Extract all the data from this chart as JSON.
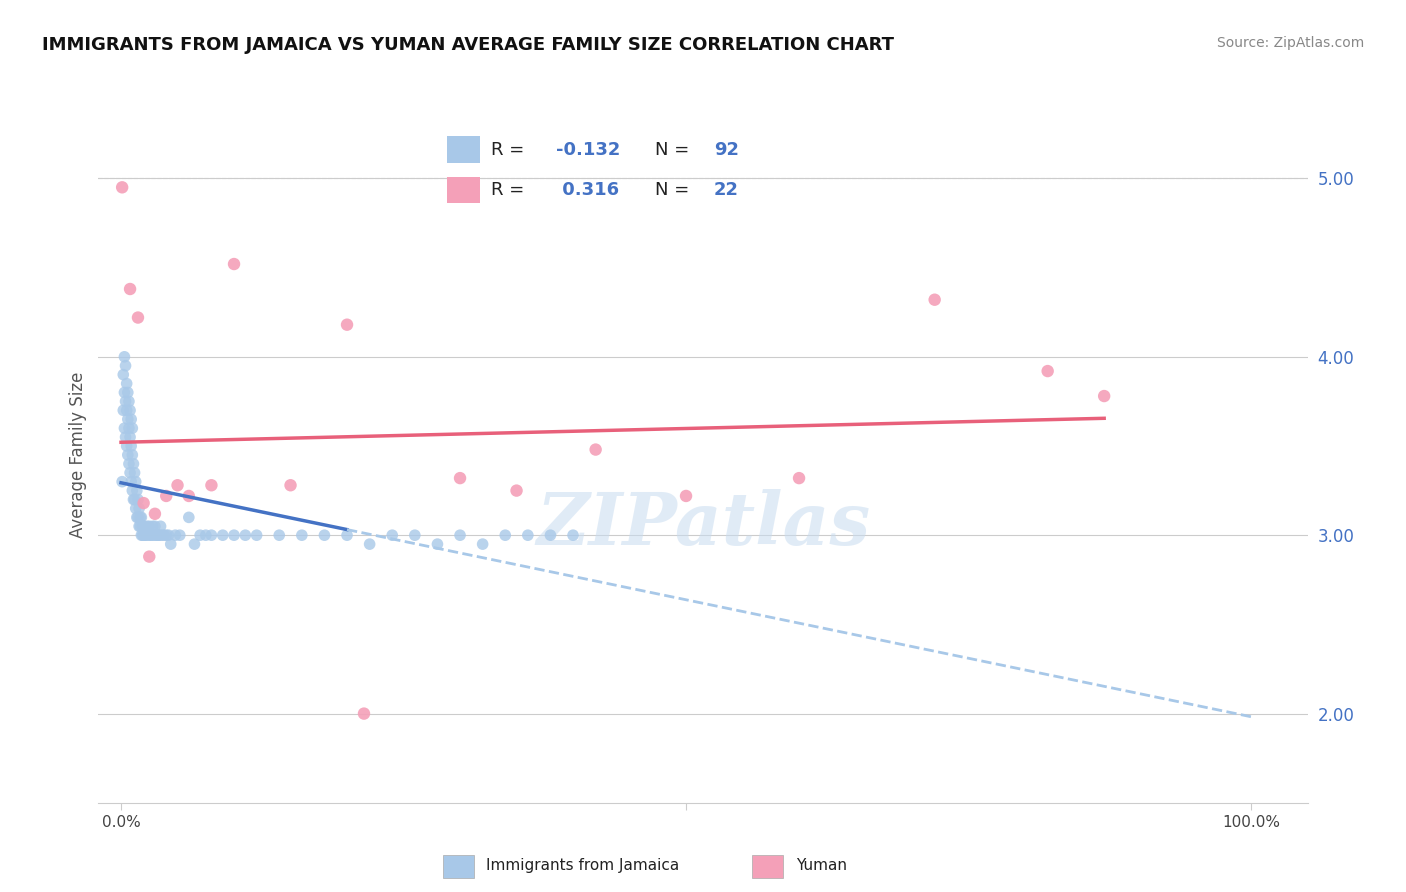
{
  "title": "IMMIGRANTS FROM JAMAICA VS YUMAN AVERAGE FAMILY SIZE CORRELATION CHART",
  "source": "Source: ZipAtlas.com",
  "ylabel": "Average Family Size",
  "r1": -0.132,
  "n1": 92,
  "r2": 0.316,
  "n2": 22,
  "ylim": [
    1.5,
    5.4
  ],
  "xlim": [
    -0.02,
    1.05
  ],
  "yticks": [
    2.0,
    3.0,
    4.0,
    5.0
  ],
  "color_blue": "#A8C8E8",
  "color_pink": "#F4A0B8",
  "line_blue_solid": "#4472C4",
  "line_blue_dash": "#A8C8E8",
  "line_pink": "#E8607A",
  "watermark": "ZIPatlas",
  "legend_label1": "Immigrants from Jamaica",
  "legend_label2": "Yuman",
  "blue_x": [
    0.001,
    0.002,
    0.002,
    0.003,
    0.003,
    0.003,
    0.004,
    0.004,
    0.004,
    0.005,
    0.005,
    0.005,
    0.006,
    0.006,
    0.006,
    0.007,
    0.007,
    0.007,
    0.008,
    0.008,
    0.008,
    0.009,
    0.009,
    0.009,
    0.01,
    0.01,
    0.01,
    0.011,
    0.011,
    0.012,
    0.012,
    0.013,
    0.013,
    0.014,
    0.014,
    0.015,
    0.015,
    0.016,
    0.016,
    0.017,
    0.017,
    0.018,
    0.018,
    0.019,
    0.019,
    0.02,
    0.02,
    0.021,
    0.022,
    0.023,
    0.024,
    0.025,
    0.026,
    0.027,
    0.028,
    0.029,
    0.03,
    0.031,
    0.032,
    0.033,
    0.034,
    0.035,
    0.036,
    0.038,
    0.04,
    0.042,
    0.044,
    0.048,
    0.052,
    0.06,
    0.065,
    0.07,
    0.075,
    0.08,
    0.09,
    0.1,
    0.11,
    0.12,
    0.14,
    0.16,
    0.18,
    0.2,
    0.22,
    0.24,
    0.26,
    0.28,
    0.3,
    0.32,
    0.34,
    0.36,
    0.38,
    0.4
  ],
  "blue_y": [
    3.3,
    3.7,
    3.9,
    3.6,
    3.8,
    4.0,
    3.55,
    3.75,
    3.95,
    3.5,
    3.7,
    3.85,
    3.45,
    3.65,
    3.8,
    3.4,
    3.6,
    3.75,
    3.35,
    3.55,
    3.7,
    3.3,
    3.5,
    3.65,
    3.25,
    3.45,
    3.6,
    3.2,
    3.4,
    3.2,
    3.35,
    3.15,
    3.3,
    3.1,
    3.25,
    3.1,
    3.2,
    3.05,
    3.15,
    3.05,
    3.1,
    3.0,
    3.1,
    3.0,
    3.05,
    3.0,
    3.05,
    3.0,
    3.0,
    3.05,
    3.0,
    3.05,
    3.0,
    3.0,
    3.05,
    3.0,
    3.05,
    3.0,
    3.0,
    3.0,
    3.0,
    3.05,
    3.0,
    3.0,
    3.0,
    3.0,
    2.95,
    3.0,
    3.0,
    3.1,
    2.95,
    3.0,
    3.0,
    3.0,
    3.0,
    3.0,
    3.0,
    3.0,
    3.0,
    3.0,
    3.0,
    3.0,
    2.95,
    3.0,
    3.0,
    2.95,
    3.0,
    2.95,
    3.0,
    3.0,
    3.0,
    3.0
  ],
  "pink_x": [
    0.001,
    0.008,
    0.015,
    0.02,
    0.025,
    0.03,
    0.04,
    0.05,
    0.06,
    0.08,
    0.1,
    0.15,
    0.2,
    0.215,
    0.3,
    0.35,
    0.42,
    0.5,
    0.6,
    0.72,
    0.82,
    0.87
  ],
  "pink_y": [
    4.95,
    4.38,
    4.22,
    3.18,
    2.88,
    3.12,
    3.22,
    3.28,
    3.22,
    3.28,
    4.52,
    3.28,
    4.18,
    2.0,
    3.32,
    3.25,
    3.48,
    3.22,
    3.32,
    4.32,
    3.92,
    3.78
  ]
}
